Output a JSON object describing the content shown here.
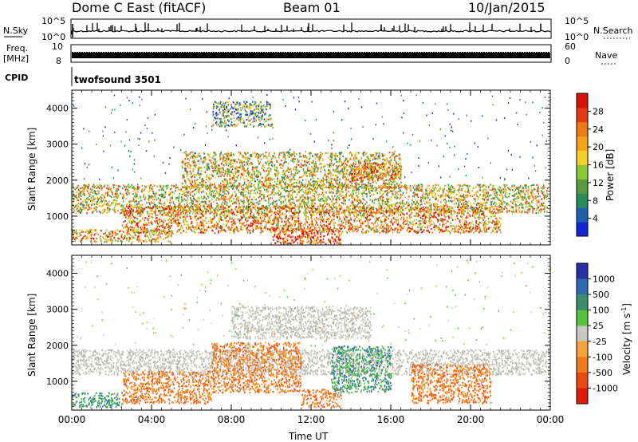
{
  "header": {
    "title_left": "Dome C East (fitACF)",
    "title_center": "Beam 01",
    "title_right": "10/Jan/2015"
  },
  "top_strips": {
    "nsky_label": "N.Sky",
    "nsky_ticks": [
      "10^5",
      "10^0"
    ],
    "nsearch_label": "N.Search",
    "nsearch_ticks": [
      "10^5",
      "10^0"
    ],
    "freq_label_1": "Freq.",
    "freq_label_2": "[MHz]",
    "freq_ticks": [
      "10",
      "8"
    ],
    "nave_label": "Nave",
    "nave_ticks": [
      "60",
      "0"
    ],
    "cpid_label": "CPID",
    "cpid_value": "twofsound 3501"
  },
  "chart_data": [
    {
      "type": "heatmap",
      "name": "power",
      "ylabel": "Slant Range [km]",
      "yticks": [
        "1000",
        "2000",
        "3000",
        "4000"
      ],
      "ylim": [
        200,
        4500
      ],
      "xlim": [
        0,
        24
      ],
      "colorbar_label": "Power [dB]",
      "colorbar_ticks": [
        "4",
        "8",
        "12",
        "16",
        "20",
        "24",
        "28"
      ],
      "colorbar_colors": [
        "#1426d6",
        "#1f5fb0",
        "#2a8a5a",
        "#5a9a3c",
        "#8ac832",
        "#f2d22a",
        "#f7a31a",
        "#f07a12",
        "#e83a10",
        "#d81008"
      ],
      "echo_regions": [
        {
          "t0": 0.0,
          "t1": 23.9,
          "r0": 1100,
          "r1": 1900,
          "level": 0.55
        },
        {
          "t0": 0.0,
          "t1": 5.0,
          "r0": 300,
          "r1": 650,
          "level": 0.65
        },
        {
          "t0": 2.5,
          "t1": 21.5,
          "r0": 550,
          "r1": 1300,
          "level": 0.7
        },
        {
          "t0": 5.5,
          "t1": 16.5,
          "r0": 1800,
          "r1": 2800,
          "level": 0.55
        },
        {
          "t0": 7.0,
          "t1": 10.0,
          "r0": 3500,
          "r1": 4200,
          "level": 0.35
        },
        {
          "t0": 10.0,
          "t1": 13.5,
          "r0": 250,
          "r1": 700,
          "level": 0.85
        },
        {
          "t0": 14.0,
          "t1": 16.5,
          "r0": 2000,
          "r1": 2500,
          "level": 0.75
        }
      ]
    },
    {
      "type": "heatmap",
      "name": "velocity",
      "ylabel": "Slant Range [km]",
      "xlabel": "Time UT",
      "yticks": [
        "1000",
        "2000",
        "3000",
        "4000"
      ],
      "ylim": [
        200,
        4500
      ],
      "xlim": [
        0,
        24
      ],
      "xticks": [
        "00:00",
        "04:00",
        "08:00",
        "12:00",
        "16:00",
        "20:00",
        "00:00"
      ],
      "colorbar_label": "Velocity [m s^-1]",
      "colorbar_ticks": [
        "1000",
        "500",
        "100",
        "25",
        "-25",
        "-100",
        "-500",
        "-1000"
      ],
      "colorbar_colors": [
        "#2a2fa8",
        "#2f6ab0",
        "#3a8f6a",
        "#56c23a",
        "#c8c8c0",
        "#f6a23a",
        "#f07a1a",
        "#e84a10",
        "#e01c0c"
      ],
      "echo_regions": [
        {
          "t0": 0.0,
          "t1": 23.9,
          "r0": 1200,
          "r1": 1900,
          "kind": "gray"
        },
        {
          "t0": 2.5,
          "t1": 7.0,
          "r0": 400,
          "r1": 1300,
          "kind": "orange"
        },
        {
          "t0": 7.0,
          "t1": 11.5,
          "r0": 700,
          "r1": 2100,
          "kind": "orange"
        },
        {
          "t0": 11.5,
          "t1": 13.5,
          "r0": 300,
          "r1": 800,
          "kind": "orange"
        },
        {
          "t0": 8.0,
          "t1": 15.0,
          "r0": 2200,
          "r1": 3100,
          "kind": "gray"
        },
        {
          "t0": 17.0,
          "t1": 21.0,
          "r0": 400,
          "r1": 1500,
          "kind": "orange"
        },
        {
          "t0": 0.0,
          "t1": 2.5,
          "r0": 300,
          "r1": 700,
          "kind": "green"
        },
        {
          "t0": 13.0,
          "t1": 16.0,
          "r0": 700,
          "r1": 2000,
          "kind": "green"
        }
      ]
    }
  ]
}
